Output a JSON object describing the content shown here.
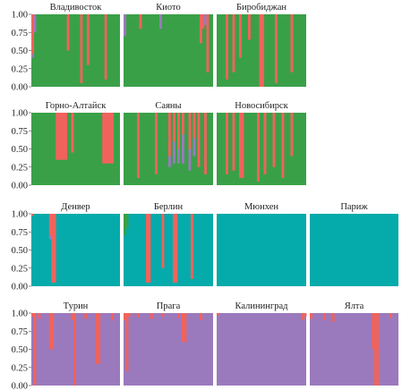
{
  "colors": {
    "green": "#3aa048",
    "red": "#f0635c",
    "purple": "#9b79bd",
    "teal": "#05aaaa"
  },
  "chart_data": {
    "type": "bar",
    "ylim": [
      0,
      1
    ],
    "yticks": [
      "0.00",
      "0.25",
      "0.50",
      "0.75",
      "1.00"
    ],
    "stack_order": [
      "red",
      "purple",
      "green",
      "teal"
    ],
    "rows": [
      {
        "panels": [
          {
            "title": "Владивосток",
            "n": 40,
            "base": "green",
            "bars": [
              {
                "i": 0,
                "red": 0.55,
                "purple": 0.05
              },
              {
                "i": 1,
                "purple": 0.25
              },
              {
                "i": 16,
                "red": 0.5
              },
              {
                "i": 22,
                "red": 0.95
              },
              {
                "i": 25,
                "red": 0.7
              },
              {
                "i": 33,
                "red": 0.9
              }
            ]
          },
          {
            "title": "Киото",
            "n": 40,
            "base": "green",
            "bars": [
              {
                "i": 0,
                "purple": 0.3
              },
              {
                "i": 7,
                "red": 0.2
              },
              {
                "i": 16,
                "purple": 0.2
              },
              {
                "i": 34,
                "red": 0.4
              },
              {
                "i": 35,
                "red": 0.2
              },
              {
                "i": 36,
                "purple": 0.15
              },
              {
                "i": 37,
                "red": 0.8
              }
            ]
          },
          {
            "title": "Биробиджан",
            "n": 40,
            "base": "green",
            "bars": [
              {
                "i": 4,
                "red": 0.9
              },
              {
                "i": 7,
                "red": 0.8
              },
              {
                "i": 10,
                "red": 0.6
              },
              {
                "i": 14,
                "red": 0.35
              },
              {
                "i": 19,
                "red": 1.0
              },
              {
                "i": 20,
                "red": 1.0
              },
              {
                "i": 26,
                "red": 0.95
              },
              {
                "i": 33,
                "red": 0.8
              }
            ]
          }
        ]
      },
      {
        "panels": [
          {
            "title": "Горно-Алтайск",
            "n": 40,
            "base": "green",
            "bars": [
              {
                "i": 11,
                "red": 0.65
              },
              {
                "i": 12,
                "red": 0.65
              },
              {
                "i": 13,
                "red": 0.65
              },
              {
                "i": 14,
                "red": 0.65
              },
              {
                "i": 15,
                "red": 0.65
              },
              {
                "i": 18,
                "red": 0.55
              },
              {
                "i": 32,
                "red": 0.7
              },
              {
                "i": 33,
                "red": 0.7
              },
              {
                "i": 34,
                "red": 0.7
              },
              {
                "i": 35,
                "red": 0.7
              },
              {
                "i": 36,
                "red": 0.7
              }
            ]
          },
          {
            "title": "Саяны",
            "n": 40,
            "base": "green",
            "bars": [
              {
                "i": 6,
                "red": 0.9
              },
              {
                "i": 14,
                "red": 0.85
              },
              {
                "i": 20,
                "red": 0.6,
                "purple": 0.15
              },
              {
                "i": 22,
                "red": 0.4,
                "purple": 0.3
              },
              {
                "i": 24,
                "red": 0.5,
                "purple": 0.2
              },
              {
                "i": 26,
                "red": 0.3,
                "purple": 0.4
              },
              {
                "i": 29,
                "red": 0.5,
                "purple": 0.3
              },
              {
                "i": 31,
                "red": 0.35,
                "purple": 0.25
              },
              {
                "i": 33,
                "red": 0.75
              },
              {
                "i": 36,
                "red": 0.85
              }
            ]
          },
          {
            "title": "Новосибирск",
            "n": 40,
            "base": "green",
            "bars": [
              {
                "i": 4,
                "red": 0.85
              },
              {
                "i": 7,
                "red": 0.8
              },
              {
                "i": 10,
                "red": 0.9
              },
              {
                "i": 11,
                "red": 0.9
              },
              {
                "i": 18,
                "red": 0.95
              },
              {
                "i": 21,
                "red": 0.85
              },
              {
                "i": 25,
                "red": 0.75
              },
              {
                "i": 29,
                "red": 0.9
              },
              {
                "i": 33,
                "red": 0.6
              }
            ]
          }
        ]
      },
      {
        "panels": [
          {
            "title": "Денвер",
            "n": 40,
            "base": "teal",
            "bars": [
              {
                "i": 0,
                "red": 0.03
              },
              {
                "i": 8,
                "red": 0.3,
                "purple": 0.05
              },
              {
                "i": 9,
                "red": 0.95
              },
              {
                "i": 10,
                "red": 0.95
              }
            ]
          },
          {
            "title": "Берлин",
            "n": 40,
            "base": "teal",
            "bars": [
              {
                "i": 0,
                "green": 0.3
              },
              {
                "i": 1,
                "green": 0.2
              },
              {
                "i": 10,
                "red": 0.95
              },
              {
                "i": 11,
                "red": 0.95
              },
              {
                "i": 17,
                "red": 0.75
              },
              {
                "i": 22,
                "red": 0.95
              },
              {
                "i": 23,
                "red": 0.95
              },
              {
                "i": 30,
                "red": 0.9
              }
            ]
          },
          {
            "title": "Мюнхен",
            "n": 40,
            "base": "teal",
            "bars": []
          },
          {
            "title": "Париж",
            "n": 40,
            "base": "teal",
            "bars": []
          }
        ]
      },
      {
        "panels": [
          {
            "title": "Турин",
            "n": 40,
            "base": "purple",
            "bars": [
              {
                "i": 0,
                "red": 0.05
              },
              {
                "i": 1,
                "red": 1.0
              },
              {
                "i": 3,
                "red": 0.08
              },
              {
                "i": 8,
                "red": 0.5
              },
              {
                "i": 9,
                "red": 0.5
              },
              {
                "i": 18,
                "red": 0.1
              },
              {
                "i": 19,
                "red": 1.0
              },
              {
                "i": 24,
                "red": 0.08
              },
              {
                "i": 29,
                "red": 0.7
              },
              {
                "i": 30,
                "red": 0.7
              },
              {
                "i": 36,
                "red": 0.1
              }
            ]
          },
          {
            "title": "Прага",
            "n": 40,
            "base": "purple",
            "bars": [
              {
                "i": 0,
                "red": 0.1
              },
              {
                "i": 1,
                "red": 0.8
              },
              {
                "i": 2,
                "red": 0.05
              },
              {
                "i": 6,
                "red": 0.06
              },
              {
                "i": 12,
                "red": 0.08
              },
              {
                "i": 17,
                "red": 0.05
              },
              {
                "i": 24,
                "red": 0.07
              },
              {
                "i": 26,
                "red": 0.4
              },
              {
                "i": 27,
                "red": 0.4
              },
              {
                "i": 34,
                "red": 0.1
              }
            ]
          },
          {
            "title": "Калининград",
            "n": 40,
            "base": "purple",
            "bars": [
              {
                "i": 0,
                "red": 0.03
              },
              {
                "i": 38,
                "red": 0.1
              },
              {
                "i": 39,
                "red": 0.05
              }
            ]
          },
          {
            "title": "Ялта",
            "n": 40,
            "base": "purple",
            "bars": [
              {
                "i": 0,
                "red": 0.08
              },
              {
                "i": 6,
                "red": 0.1
              },
              {
                "i": 10,
                "red": 0.12
              },
              {
                "i": 28,
                "red": 0.5
              },
              {
                "i": 29,
                "red": 1.0
              },
              {
                "i": 30,
                "red": 1.0
              },
              {
                "i": 36,
                "red": 0.07
              }
            ]
          }
        ]
      }
    ]
  }
}
